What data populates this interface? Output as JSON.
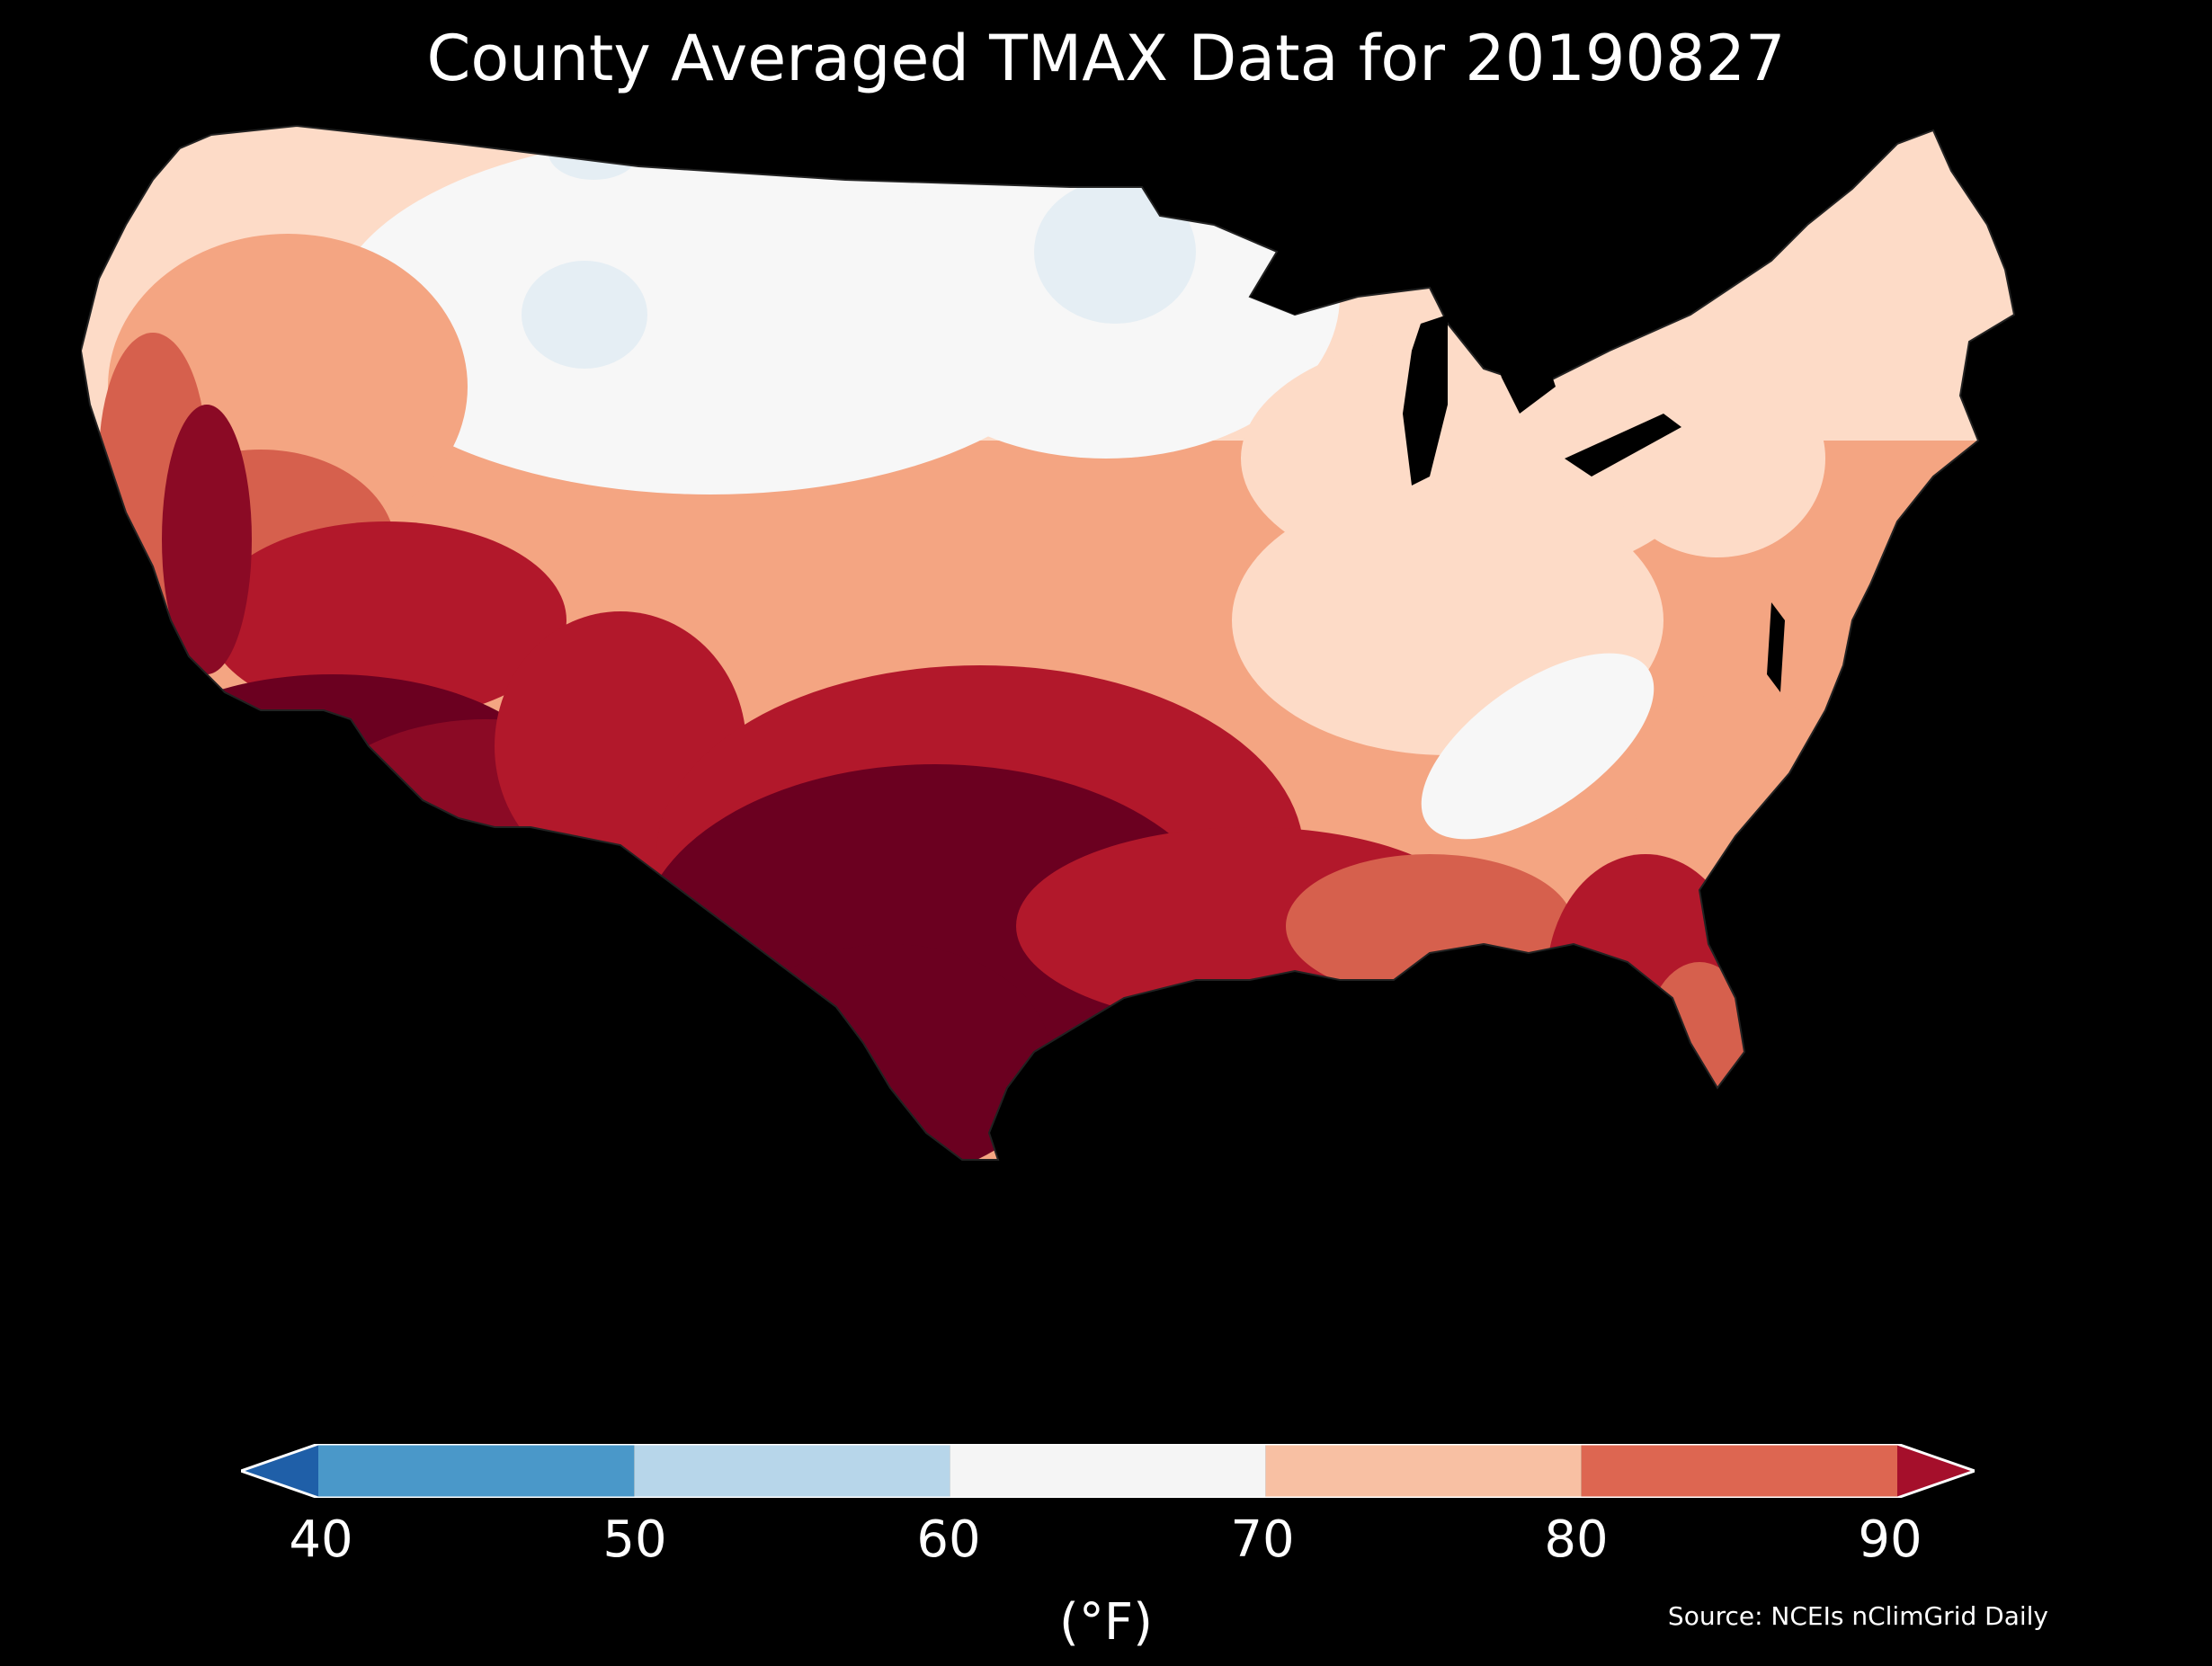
{
  "title": "County Averaged TMAX Data for 20190827",
  "units_label": "(°F)",
  "source_note": "Source: NCEIs nClimGrid Daily",
  "colorbar": {
    "ticks": [
      "40",
      "50",
      "60",
      "70",
      "80",
      "90"
    ],
    "tick_values": [
      40,
      50,
      60,
      70,
      80,
      90
    ],
    "min": 40,
    "max": 90,
    "extend": "both",
    "under_color": "#1f5fa8",
    "over_color": "#a50f2b",
    "segments": [
      {
        "from": 40,
        "to": 50,
        "color": "#4a98c9"
      },
      {
        "from": 50,
        "to": 60,
        "color": "#b7d6ea"
      },
      {
        "from": 60,
        "to": 70,
        "color": "#f5f5f5"
      },
      {
        "from": 70,
        "to": 80,
        "color": "#f8c0a3"
      },
      {
        "from": 80,
        "to": 90,
        "color": "#dd6651"
      }
    ]
  },
  "map": {
    "region": "Contiguous United States",
    "background": "#000000",
    "dark_red": "#6b0020",
    "red": "#b2182b",
    "light_red": "#d6604d",
    "salmon": "#f4a582",
    "peach": "#fddbc7",
    "near_white": "#f7f7f7",
    "pale_blue": "#e5eef4"
  }
}
